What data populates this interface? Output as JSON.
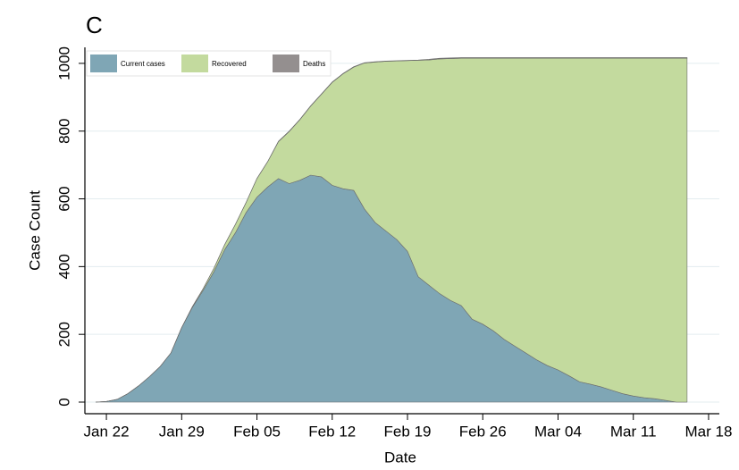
{
  "chart_data": {
    "type": "stacked_area",
    "panel_label": "C",
    "x_label": "Date",
    "y_label": "Case Count",
    "x": [
      "Jan 21",
      "Jan 22",
      "Jan 23",
      "Jan 24",
      "Jan 25",
      "Jan 26",
      "Jan 27",
      "Jan 28",
      "Jan 29",
      "Jan 30",
      "Jan 31",
      "Feb 1",
      "Feb 2",
      "Feb 3",
      "Feb 4",
      "Feb 5",
      "Feb 6",
      "Feb 7",
      "Feb 8",
      "Feb 9",
      "Feb 10",
      "Feb 11",
      "Feb 12",
      "Feb 13",
      "Feb 14",
      "Feb 15",
      "Feb 16",
      "Feb 17",
      "Feb 18",
      "Feb 19",
      "Feb 20",
      "Feb 21",
      "Feb 22",
      "Feb 23",
      "Feb 24",
      "Feb 25",
      "Feb 26",
      "Feb 27",
      "Feb 28",
      "Feb 29",
      "Mar 1",
      "Mar 2",
      "Mar 3",
      "Mar 4",
      "Mar 5",
      "Mar 6",
      "Mar 7",
      "Mar 8",
      "Mar 9",
      "Mar 10",
      "Mar 11",
      "Mar 12",
      "Mar 13",
      "Mar 14",
      "Mar 15",
      "Mar 16"
    ],
    "series": [
      {
        "name": "Current cases",
        "color": "#7fa6b5",
        "values": [
          0,
          2,
          8,
          25,
          48,
          75,
          105,
          145,
          220,
          280,
          330,
          385,
          450,
          500,
          560,
          605,
          635,
          660,
          645,
          655,
          670,
          665,
          640,
          630,
          625,
          570,
          530,
          505,
          480,
          445,
          370,
          345,
          320,
          300,
          285,
          245,
          230,
          210,
          185,
          165,
          145,
          125,
          108,
          95,
          78,
          60,
          53,
          45,
          35,
          25,
          18,
          13,
          10,
          5,
          0,
          0
        ]
      },
      {
        "name": "Recovered",
        "color": "#c3da9e",
        "values": [
          0,
          0,
          0,
          0,
          0,
          0,
          0,
          0,
          0,
          2,
          5,
          10,
          15,
          25,
          30,
          55,
          75,
          109,
          154,
          179,
          204,
          244,
          304,
          339,
          364,
          431,
          474,
          501,
          527,
          563,
          639,
          665,
          693,
          714,
          730,
          770,
          785,
          805,
          830,
          850,
          870,
          890,
          907,
          920,
          937,
          955,
          962,
          970,
          980,
          990,
          997,
          1002,
          1005,
          1010,
          1015,
          1015
        ]
      },
      {
        "name": "Deaths",
        "color": "#948f8f",
        "values": [
          0,
          0,
          0,
          0,
          0,
          0,
          0,
          0,
          0,
          0,
          0,
          0,
          0,
          0,
          0,
          0,
          0,
          1,
          1,
          1,
          1,
          1,
          1,
          1,
          1,
          1,
          1,
          1,
          1,
          1,
          1,
          2,
          2,
          2,
          2,
          2,
          2,
          2,
          2,
          2,
          2,
          2,
          2,
          2,
          2,
          2,
          2,
          2,
          2,
          2,
          2,
          2,
          2,
          2,
          2,
          2
        ]
      }
    ],
    "xlim": [
      "Jan 20",
      "Mar 19"
    ],
    "xticks": [
      "Jan 22",
      "Jan 29",
      "Feb 05",
      "Feb 12",
      "Feb 19",
      "Feb 26",
      "Mar 04",
      "Mar 11",
      "Mar 18"
    ],
    "ylim": [
      0,
      1100
    ],
    "yticks": [
      0,
      200,
      400,
      600,
      800,
      1000
    ],
    "grid": true,
    "legend": "top-left"
  }
}
